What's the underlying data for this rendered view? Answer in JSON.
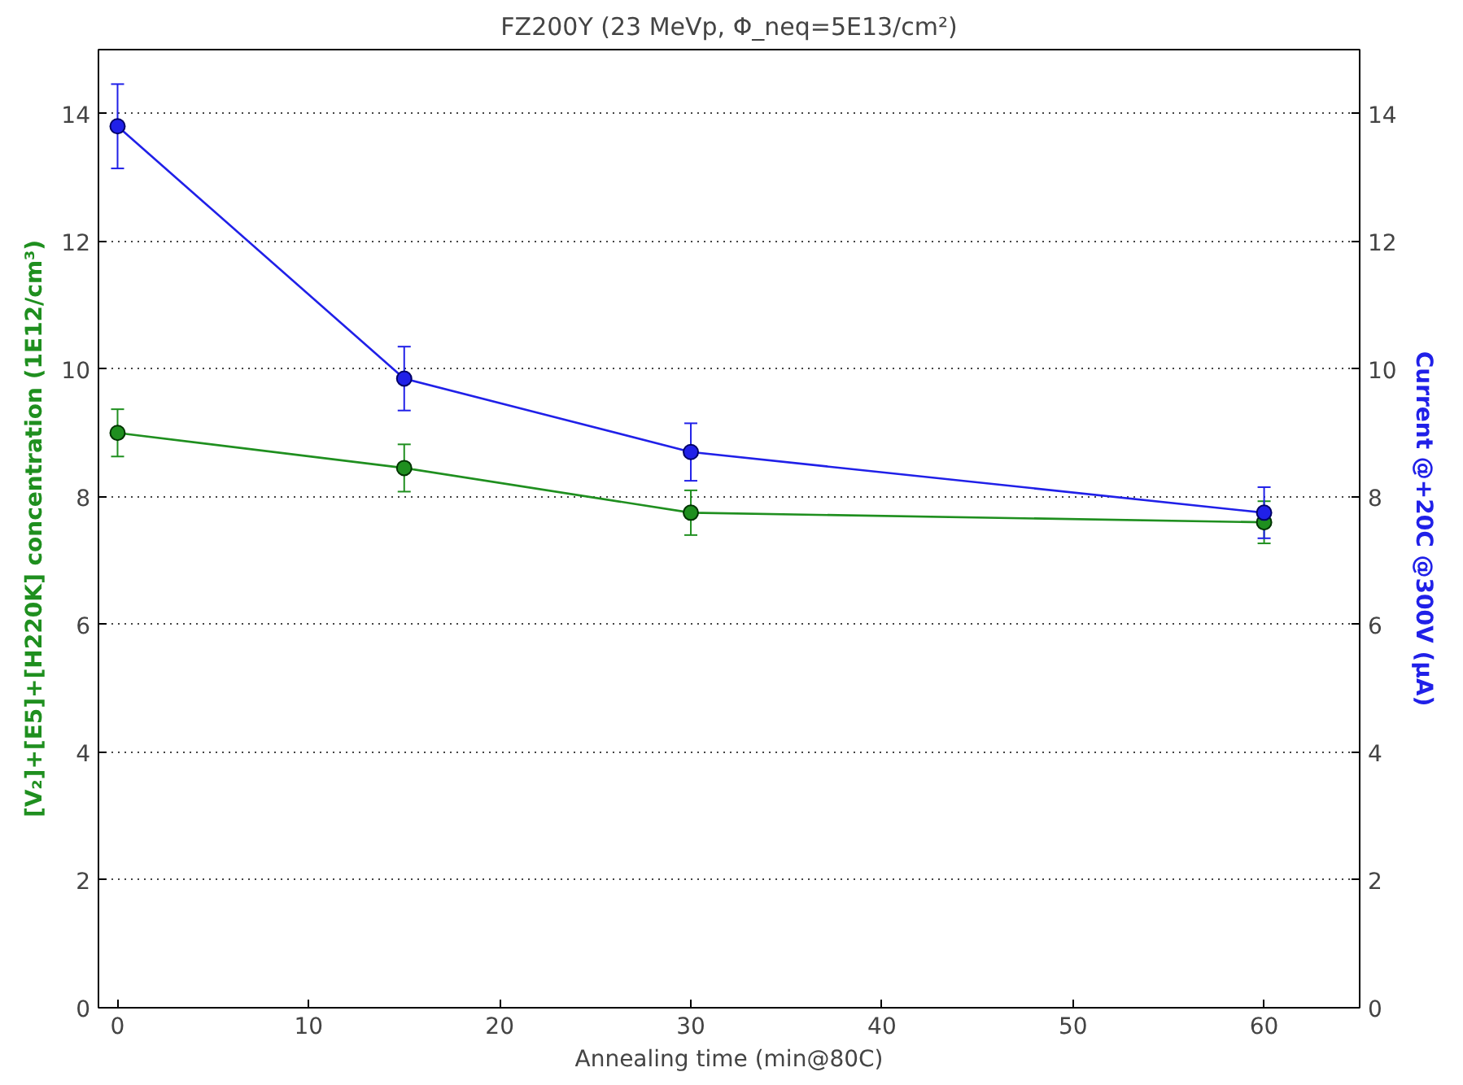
{
  "chart_data": {
    "type": "line",
    "title": "FZ200Y (23 MeVp, Φ_neq=5E13/cm²)",
    "xlabel": "Annealing time (min@80C)",
    "ylabel": "[V₂]+[E5]+[H220K] concentration (1E12/cm³)",
    "y2label": "Current @+20C @300V (μA)",
    "x": [
      0,
      15,
      30,
      60
    ],
    "series": [
      {
        "color": "#1f8f1f",
        "values": [
          9.0,
          8.45,
          7.75,
          7.6
        ],
        "errors": [
          0.37,
          0.37,
          0.35,
          0.33
        ]
      },
      {
        "color": "#2020e8",
        "values": [
          13.8,
          9.85,
          8.7,
          7.75
        ],
        "errors": [
          0.66,
          0.5,
          0.45,
          0.4
        ],
        "axis": "y2"
      }
    ],
    "xlim": [
      -1,
      65
    ],
    "xticks": [
      0,
      10,
      20,
      30,
      40,
      50,
      60
    ],
    "ylim": [
      0,
      15
    ],
    "yticks": [
      0,
      2,
      4,
      6,
      8,
      10,
      12,
      14
    ],
    "y2lim": [
      0,
      15
    ],
    "y2ticks": [
      0,
      2,
      4,
      6,
      8,
      10,
      12,
      14
    ],
    "grid": "y",
    "marker": "circle",
    "line_style": "solid"
  }
}
